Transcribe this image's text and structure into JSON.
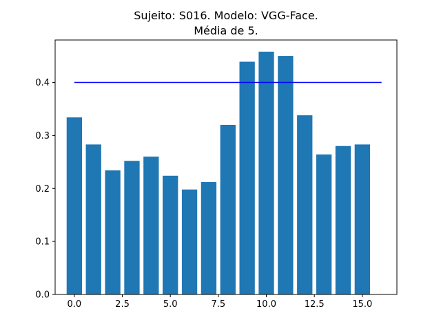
{
  "chart_data": {
    "type": "bar",
    "title": "Sujeito: S016. Modelo: VGG-Face.",
    "subtitle": "Média de 5.",
    "xlabel": "",
    "ylabel": "",
    "x": [
      0,
      1,
      2,
      3,
      4,
      5,
      6,
      7,
      8,
      9,
      10,
      11,
      12,
      13,
      14,
      15
    ],
    "values": [
      0.334,
      0.283,
      0.234,
      0.252,
      0.26,
      0.224,
      0.198,
      0.212,
      0.32,
      0.439,
      0.458,
      0.45,
      0.338,
      0.264,
      0.28,
      0.283
    ],
    "bar_color": "#1f77b4",
    "threshold": {
      "value": 0.4,
      "x_start": 0,
      "x_end": 16,
      "color": "#0000ff"
    },
    "xlim": [
      -1.0,
      16.8
    ],
    "ylim": [
      0,
      0.48
    ],
    "xticks": [
      0,
      2.5,
      5,
      7.5,
      10,
      12.5,
      15
    ],
    "xtick_labels": [
      "0.0",
      "2.5",
      "5.0",
      "7.5",
      "10.0",
      "12.5",
      "15.0"
    ],
    "yticks": [
      0,
      0.1,
      0.2,
      0.3,
      0.4
    ],
    "ytick_labels": [
      "0.0",
      "0.1",
      "0.2",
      "0.3",
      "0.4"
    ],
    "grid": false
  }
}
